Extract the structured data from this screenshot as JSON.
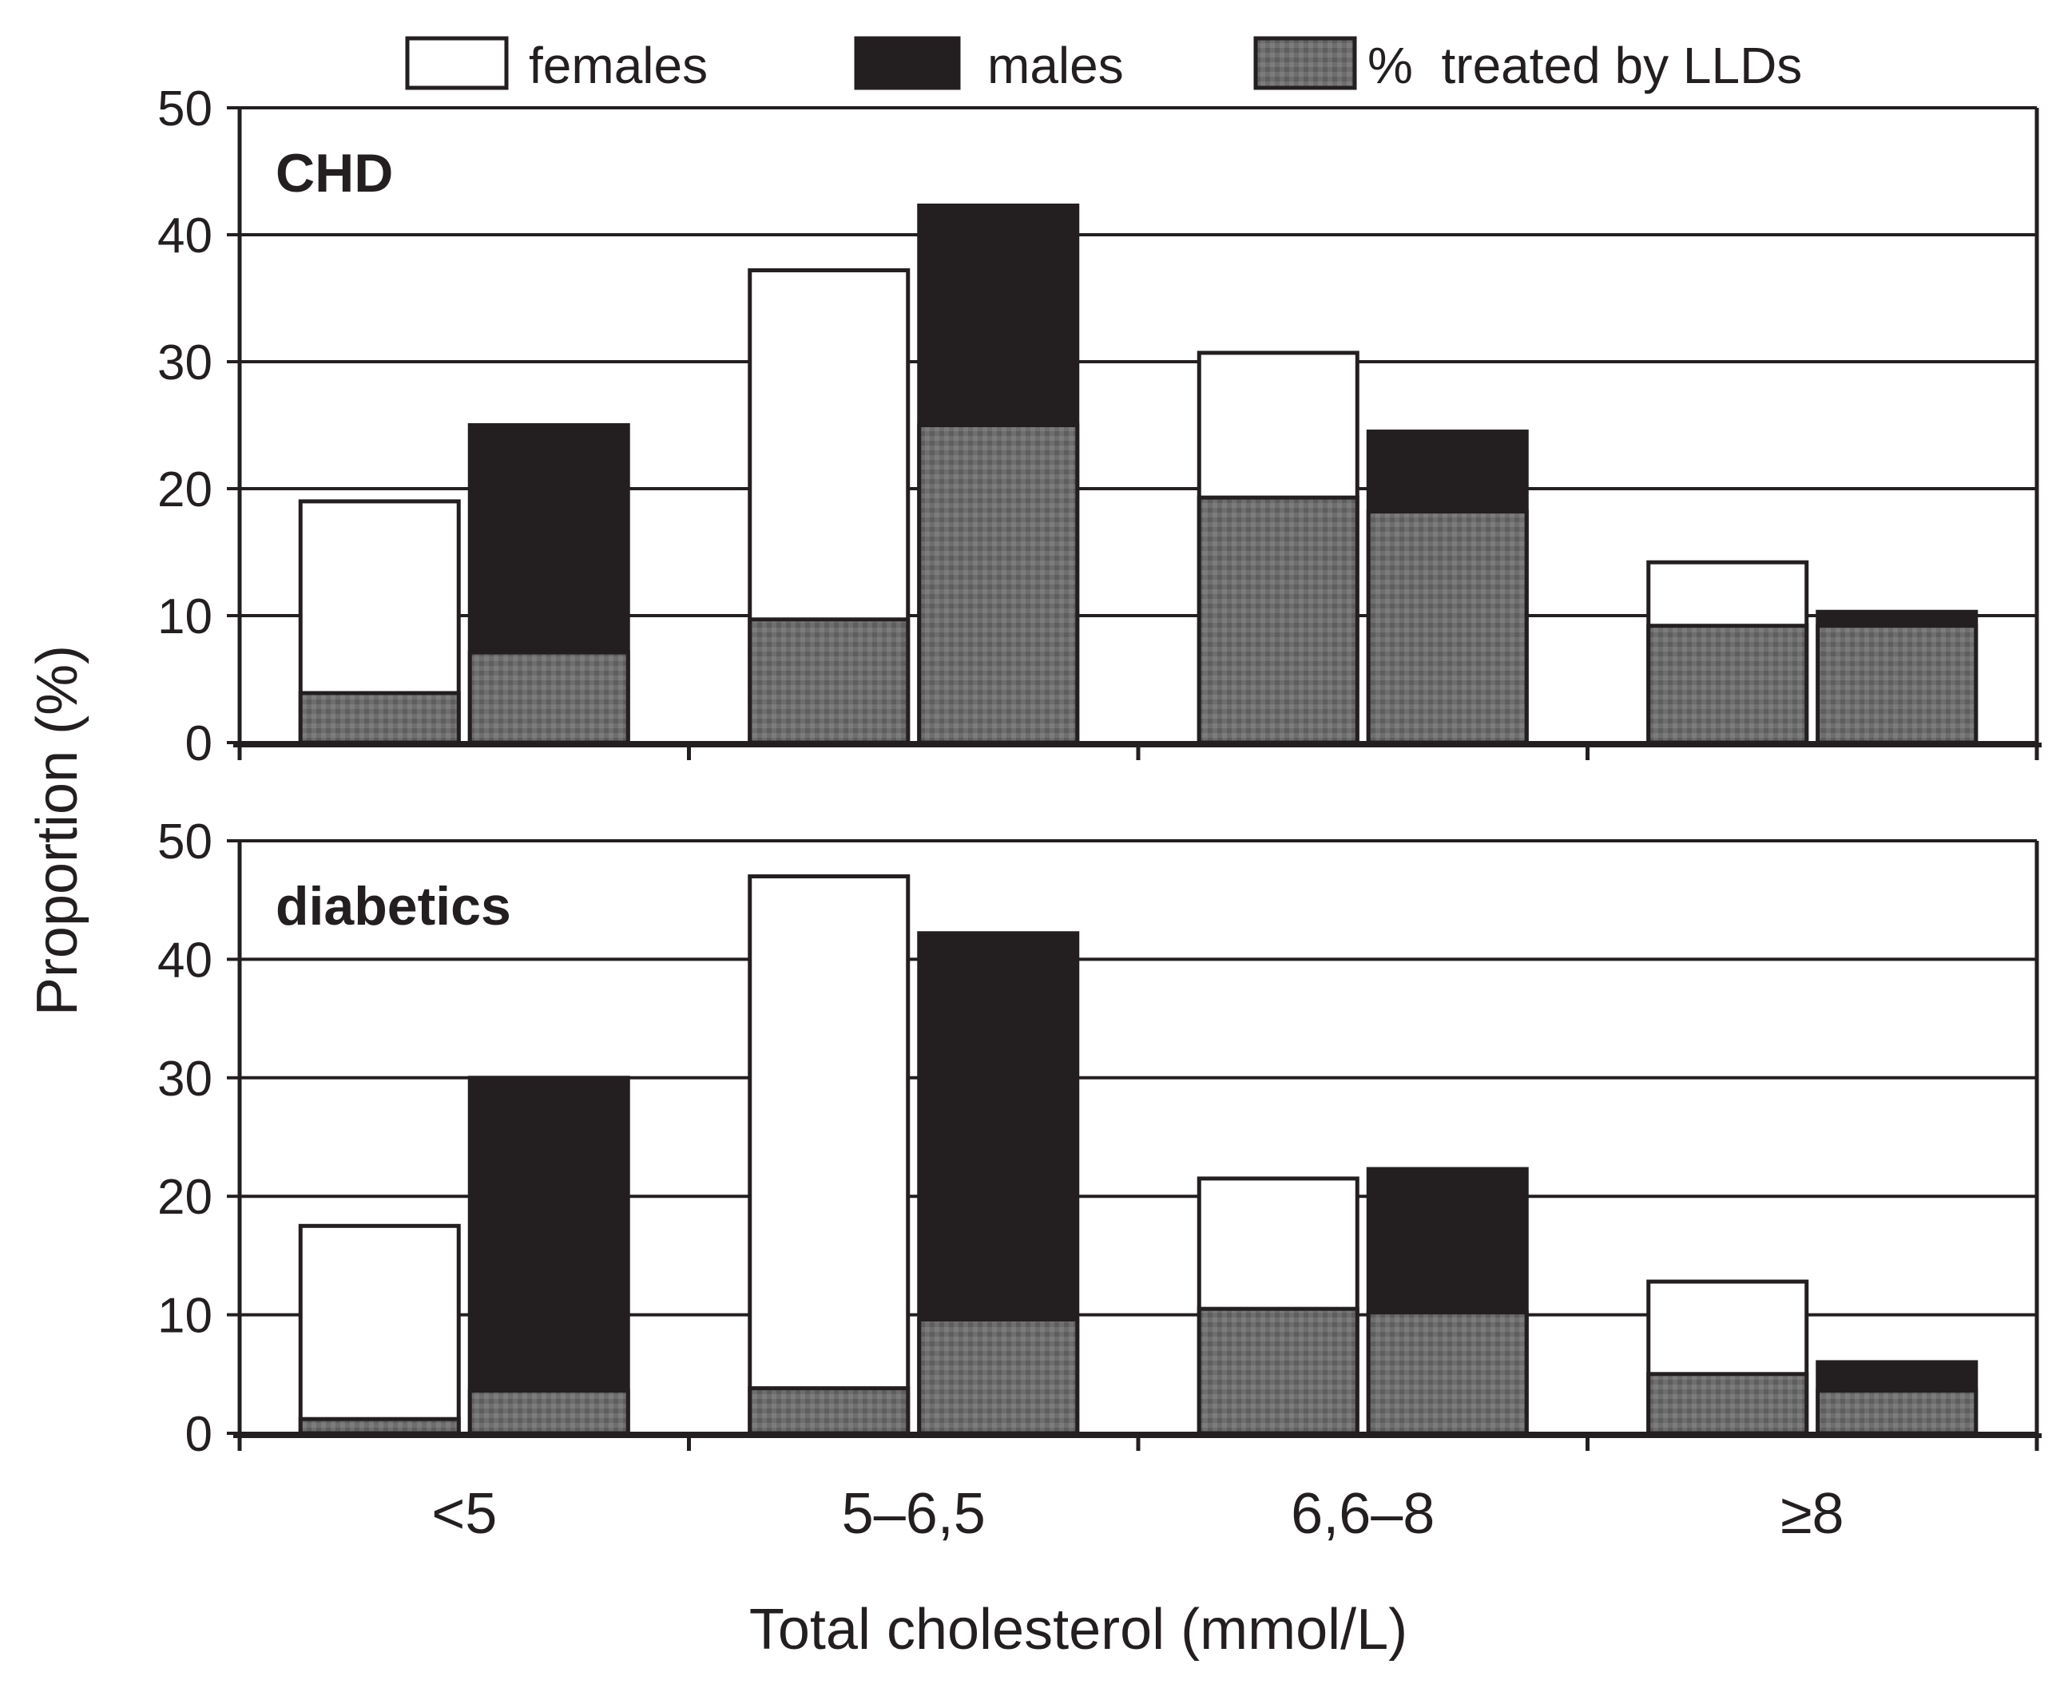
{
  "colors": {
    "females": "#ffffff",
    "males": "#231f20",
    "treated": "#6e6e6e",
    "grid": "#231f20",
    "text": "#231f20"
  },
  "legend": {
    "females": "females",
    "males": "males",
    "treated": "%  treated by LLDs"
  },
  "chart_data": {
    "type": "bar",
    "xlabel": "Total cholesterol (mmol/L)",
    "ylabel": "Proportion (%)",
    "categories": [
      "<5",
      "5–6,5",
      "6,6–8",
      "≥8"
    ],
    "ylim": [
      0,
      50
    ],
    "yticks": [
      "0",
      "10",
      "20",
      "30",
      "40",
      "50"
    ],
    "grid": true,
    "legend_position": "top",
    "panels": [
      {
        "label": "CHD",
        "series": [
          {
            "name": "females",
            "values": [
              19,
              37.2,
              30.7,
              14.2
            ]
          },
          {
            "name": "males",
            "values": [
              25,
              42.3,
              24.5,
              10.3
            ]
          }
        ],
        "treated": {
          "females": [
            3.9,
            9.7,
            19.3,
            9.2
          ],
          "males": [
            7.1,
            25,
            18.2,
            9.2
          ]
        }
      },
      {
        "label": "diabetics",
        "series": [
          {
            "name": "females",
            "values": [
              17.5,
              47,
              21.5,
              12.8
            ]
          },
          {
            "name": "males",
            "values": [
              30,
              42.2,
              22.3,
              6
            ]
          }
        ],
        "treated": {
          "females": [
            1.2,
            3.8,
            10.5,
            5
          ],
          "males": [
            3.6,
            9.6,
            10.2,
            3.6
          ]
        }
      }
    ]
  }
}
